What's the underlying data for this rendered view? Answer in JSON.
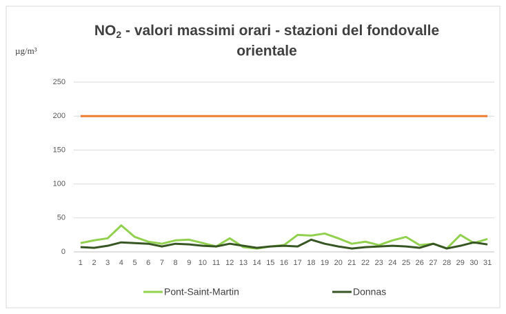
{
  "chart_data": {
    "type": "line",
    "title": [
      "NO",
      "2",
      "- valori massimi orari - stazioni del fondovalle",
      "orientale"
    ],
    "y_label": "µg/m³",
    "categories": [
      "1",
      "2",
      "3",
      "4",
      "5",
      "6",
      "7",
      "8",
      "9",
      "10",
      "11",
      "12",
      "13",
      "14",
      "15",
      "16",
      "17",
      "18",
      "19",
      "20",
      "21",
      "22",
      "23",
      "24",
      "25",
      "26",
      "27",
      "28",
      "29",
      "30",
      "31"
    ],
    "series": [
      {
        "name": "Pont-Saint-Martin",
        "color": "#92d050",
        "values": [
          13,
          17,
          20,
          39,
          22,
          15,
          12,
          17,
          18,
          13,
          8,
          20,
          7,
          5,
          8,
          10,
          25,
          24,
          27,
          20,
          12,
          15,
          10,
          17,
          22,
          10,
          12,
          5,
          25,
          13,
          19
        ]
      },
      {
        "name": "Donnas",
        "color": "#375623",
        "values": [
          7,
          6,
          9,
          14,
          13,
          12,
          8,
          12,
          11,
          9,
          8,
          12,
          9,
          6,
          8,
          9,
          8,
          18,
          12,
          8,
          5,
          7,
          8,
          9,
          8,
          6,
          12,
          5,
          9,
          14,
          11
        ]
      }
    ],
    "limit_line": {
      "value": 200,
      "color": "#ed7d31"
    },
    "ylim": [
      0,
      250
    ],
    "yticks": [
      0,
      50,
      100,
      150,
      200,
      250
    ],
    "grid": true,
    "legend": "bottom"
  }
}
